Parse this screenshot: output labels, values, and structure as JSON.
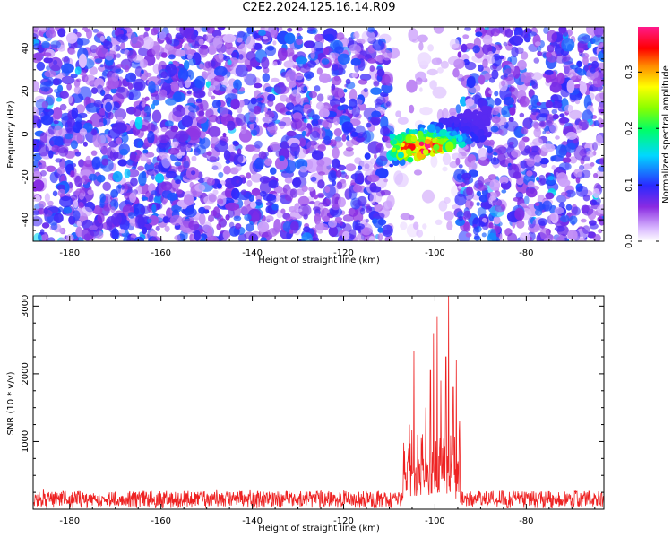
{
  "title": "C2E2.2024.125.16.14.R09",
  "colors": {
    "signal_line": "#ee2222",
    "axes": "#000000",
    "background": "#ffffff"
  },
  "chart_data": [
    {
      "type": "heatmap",
      "title": "",
      "xlabel": "Height of straight line (km)",
      "ylabel": "Frequency (Hz)",
      "xlim": [
        -188,
        -63
      ],
      "ylim": [
        -50,
        50
      ],
      "xticks": [
        -180,
        -160,
        -140,
        -120,
        -100,
        -80
      ],
      "yticks": [
        -40,
        -20,
        0,
        20,
        40
      ],
      "colorbar": {
        "label": "Normalized spectral amplitude",
        "range": [
          0.0,
          0.38
        ],
        "ticks": [
          0.0,
          0.1,
          0.2,
          0.3
        ],
        "colormap": "rainbow (white-violet-blue-cyan-green-yellow-red-magenta)"
      },
      "features": [
        {
          "x_range": [
            -110,
            -95
          ],
          "gap_freq_range": [
            -50,
            50
          ],
          "note": "vertical band with sparse background"
        },
        {
          "x_range": [
            -110,
            -88
          ],
          "freq_range": [
            -12,
            8
          ],
          "peak_amplitude": 0.38,
          "peak_x": -103,
          "peak_freq": -6
        }
      ],
      "background_level": [
        0.02,
        0.12
      ]
    },
    {
      "type": "line",
      "title": "",
      "xlabel": "Height of straight line (km)",
      "ylabel": "SNR (10 * v/v)",
      "xlim": [
        -188,
        -63
      ],
      "ylim": [
        0,
        3150
      ],
      "xticks": [
        -180,
        -160,
        -140,
        -120,
        -100,
        -80
      ],
      "yticks": [
        1000,
        2000,
        3000
      ],
      "grid": false,
      "series": [
        {
          "noise_floor": 150,
          "noise_amplitude": 120,
          "peaks": [
            {
              "x": -106.0,
              "y": 700
            },
            {
              "x": -104.6,
              "y": 2330
            },
            {
              "x": -103.8,
              "y": 1100
            },
            {
              "x": -102.0,
              "y": 1500
            },
            {
              "x": -101.0,
              "y": 2050
            },
            {
              "x": -100.3,
              "y": 2600
            },
            {
              "x": -99.5,
              "y": 2850
            },
            {
              "x": -98.7,
              "y": 1900
            },
            {
              "x": -97.6,
              "y": 2250
            },
            {
              "x": -97.0,
              "y": 3150
            },
            {
              "x": -96.0,
              "y": 1800
            },
            {
              "x": -95.3,
              "y": 2200
            }
          ]
        }
      ]
    }
  ]
}
